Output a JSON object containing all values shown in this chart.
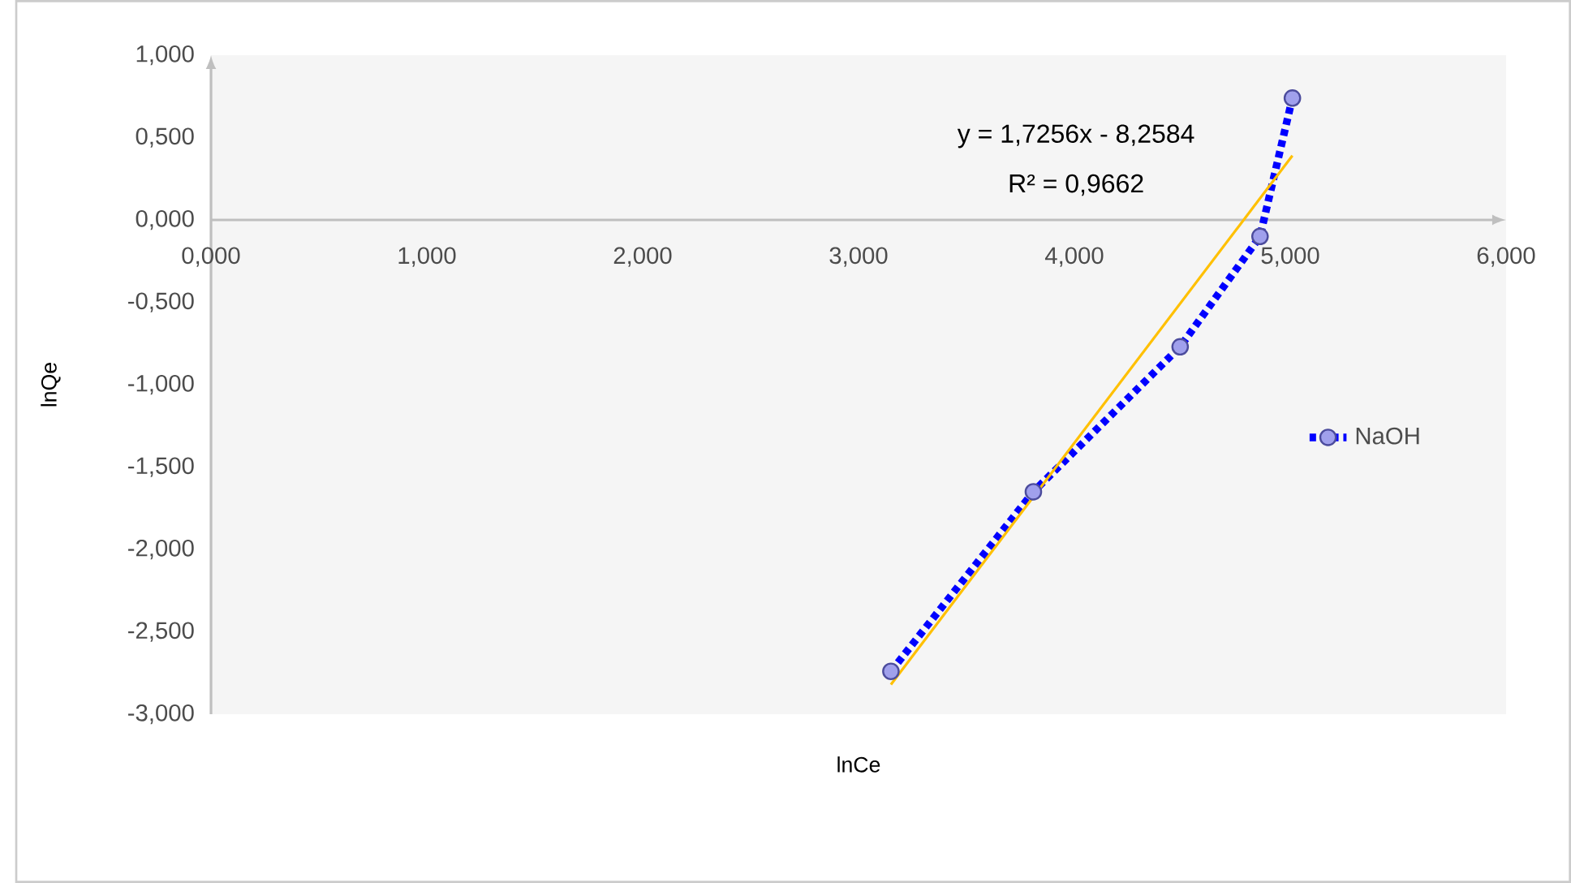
{
  "chart_data": {
    "type": "line",
    "xlabel": "lnCe",
    "ylabel": "lnQe",
    "xlim": [
      0,
      6
    ],
    "ylim": [
      -3,
      1
    ],
    "xticks": [
      {
        "value": 0,
        "label": "0,000"
      },
      {
        "value": 1,
        "label": "1,000"
      },
      {
        "value": 2,
        "label": "2,000"
      },
      {
        "value": 3,
        "label": "3,000"
      },
      {
        "value": 4,
        "label": "4,000"
      },
      {
        "value": 5,
        "label": "5,000"
      },
      {
        "value": 6,
        "label": "6,000"
      }
    ],
    "yticks": [
      {
        "value": -3,
        "label": "-3,000"
      },
      {
        "value": -2.5,
        "label": "-2,500"
      },
      {
        "value": -2,
        "label": "-2,000"
      },
      {
        "value": -1.5,
        "label": "-1,500"
      },
      {
        "value": -1,
        "label": "-1,000"
      },
      {
        "value": -0.5,
        "label": "-0,500"
      },
      {
        "value": 0,
        "label": "0,000"
      },
      {
        "value": 0.5,
        "label": "0,500"
      },
      {
        "value": 1,
        "label": "1,000"
      }
    ],
    "series": [
      {
        "name": "NaOH",
        "type": "line",
        "color": "#0000ff",
        "marker": "circle",
        "line_style": "dotted",
        "x": [
          3.15,
          3.81,
          4.49,
          4.86,
          5.01
        ],
        "values": [
          -2.74,
          -1.65,
          -0.77,
          -0.1,
          0.74
        ]
      },
      {
        "type": "line",
        "color": "#ffc000",
        "marker": "none",
        "line_style": "solid",
        "x": [
          3.15,
          5.01
        ],
        "values": [
          -2.82,
          0.39
        ]
      }
    ],
    "annotations": [
      "y = 1,7256x - 8,2584",
      "R² = 0,9662"
    ],
    "legend": "right"
  }
}
